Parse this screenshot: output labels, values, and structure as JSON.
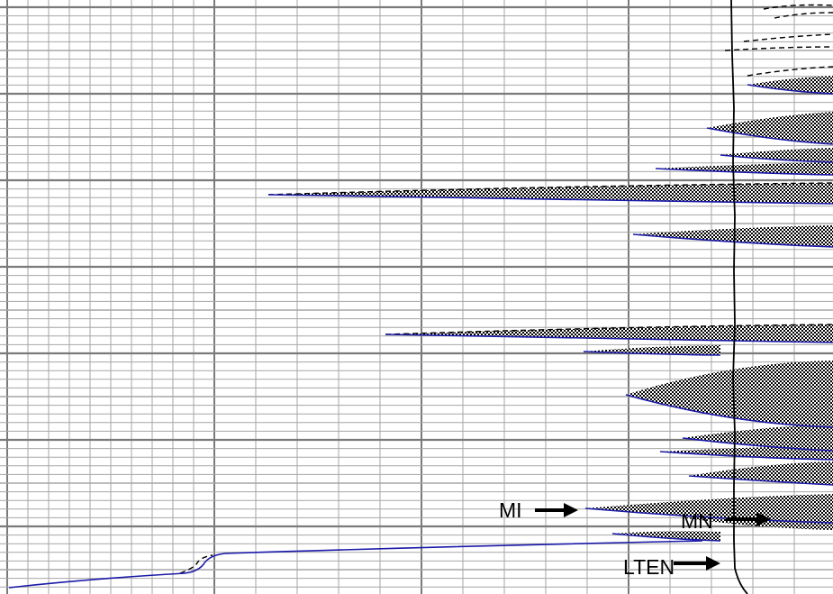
{
  "labels": {
    "mi": "MI",
    "mn": "MN",
    "lten": "LTEN"
  },
  "colors": {
    "grid_minor": "#a6a6a6",
    "grid_major": "#7a7a7a",
    "blue_curve": "#1a1aa8",
    "black_curve": "#000000",
    "fill": "checkerboard"
  },
  "icons": {
    "mi_arrow": "arrow-right-icon",
    "mn_arrow": "arrow-right-icon",
    "lten_arrow": "arrow-right-icon"
  }
}
